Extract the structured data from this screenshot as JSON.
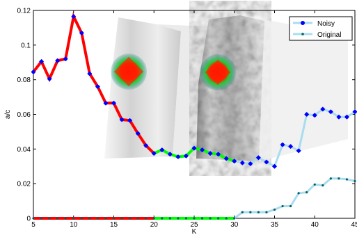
{
  "chart_data": {
    "type": "line",
    "xlabel": "K",
    "ylabel": "a/c",
    "xlim": [
      5,
      45
    ],
    "ylim": [
      0,
      0.12
    ],
    "xticks": [
      "5",
      "10",
      "15",
      "20",
      "25",
      "30",
      "35",
      "40",
      "45"
    ],
    "yticks": [
      "0",
      "0.02",
      "0.04",
      "0.06",
      "0.08",
      "0.1",
      "0.12"
    ],
    "legend_position": "top-right",
    "series": [
      {
        "name": "Noisy",
        "line_color": "#a8dcf0",
        "marker_color": "#0000ff",
        "segments": [
          {
            "color": "#ff0000",
            "from_x": 5,
            "to_x": 20
          },
          {
            "color": "#00ff00",
            "from_x": 20,
            "to_x": 30
          }
        ],
        "x": [
          5,
          6,
          7,
          8,
          9,
          10,
          11,
          12,
          13,
          14,
          15,
          16,
          17,
          18,
          19,
          20,
          21,
          22,
          23,
          24,
          25,
          26,
          27,
          28,
          29,
          30,
          31,
          32,
          33,
          34,
          35,
          36,
          37,
          38,
          39,
          40,
          41,
          42,
          43,
          44,
          45
        ],
        "values": [
          0.0845,
          0.0905,
          0.0805,
          0.091,
          0.092,
          0.1165,
          0.107,
          0.0835,
          0.076,
          0.0665,
          0.0665,
          0.057,
          0.0565,
          0.049,
          0.042,
          0.0375,
          0.0395,
          0.037,
          0.0355,
          0.036,
          0.0405,
          0.0395,
          0.0375,
          0.037,
          0.0345,
          0.033,
          0.032,
          0.0315,
          0.035,
          0.0325,
          0.03,
          0.0425,
          0.0415,
          0.039,
          0.06,
          0.0595,
          0.063,
          0.0615,
          0.0585,
          0.0585,
          0.0615
        ]
      },
      {
        "name": "Original",
        "line_color": "#a8dcf0",
        "marker_color": "#006060",
        "segments": [
          {
            "color": "#ff0000",
            "from_x": 5,
            "to_x": 20
          },
          {
            "color": "#00ff00",
            "from_x": 20,
            "to_x": 30
          }
        ],
        "x": [
          5,
          6,
          7,
          8,
          9,
          10,
          11,
          12,
          13,
          14,
          15,
          16,
          17,
          18,
          19,
          20,
          21,
          22,
          23,
          24,
          25,
          26,
          27,
          28,
          29,
          30,
          31,
          32,
          33,
          34,
          35,
          36,
          37,
          38,
          39,
          40,
          41,
          42,
          43,
          44,
          45
        ],
        "values": [
          0,
          0,
          0,
          0,
          0,
          0,
          0,
          0,
          0,
          0,
          0,
          0,
          0,
          0,
          0,
          0,
          0,
          0,
          0,
          0,
          0,
          0,
          0,
          0,
          0,
          0,
          0.0035,
          0.0035,
          0.0035,
          0.0035,
          0.005,
          0.007,
          0.007,
          0.0145,
          0.015,
          0.0195,
          0.019,
          0.023,
          0.023,
          0.0225,
          0.0215
        ]
      }
    ]
  }
}
